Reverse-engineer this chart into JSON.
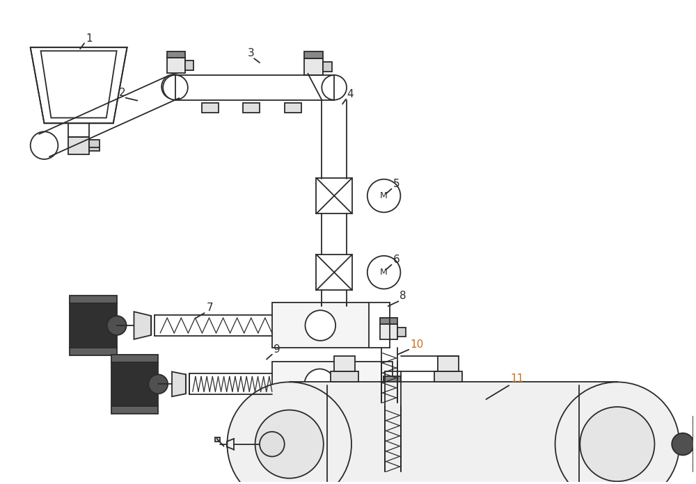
{
  "bg_color": "#ffffff",
  "line_color": "#2a2a2a",
  "label_color_default": "#1a1a1a",
  "label_color_orange": "#c87020",
  "figsize": [
    10.0,
    6.96
  ],
  "dpi": 100
}
